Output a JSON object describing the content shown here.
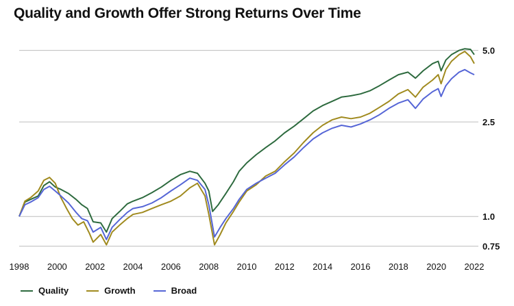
{
  "title": "Quality and Growth Offer Strong Returns Over Time",
  "chart_data": {
    "type": "line",
    "y_scale": "log",
    "ylim": [
      0.7,
      5.4
    ],
    "y_ticks": [
      {
        "value": 0.75,
        "label": "0.75"
      },
      {
        "value": 1.0,
        "label": "1.0"
      },
      {
        "value": 2.5,
        "label": "2.5"
      },
      {
        "value": 5.0,
        "label": "5.0"
      }
    ],
    "xlim": [
      1998,
      2022
    ],
    "x_ticks": [
      1998,
      2000,
      2002,
      2004,
      2006,
      2008,
      2010,
      2012,
      2014,
      2016,
      2018,
      2020,
      2022
    ],
    "grid": true,
    "legend_position": "bottom-left",
    "series": [
      {
        "name": "Quality",
        "color": "#2d6a3e",
        "points": [
          [
            1998.0,
            1.0
          ],
          [
            1998.3,
            1.15
          ],
          [
            1998.6,
            1.18
          ],
          [
            1999.0,
            1.22
          ],
          [
            1999.3,
            1.35
          ],
          [
            1999.6,
            1.4
          ],
          [
            1999.9,
            1.33
          ],
          [
            2000.2,
            1.3
          ],
          [
            2000.6,
            1.25
          ],
          [
            2001.0,
            1.18
          ],
          [
            2001.3,
            1.12
          ],
          [
            2001.6,
            1.08
          ],
          [
            2001.9,
            0.95
          ],
          [
            2002.3,
            0.94
          ],
          [
            2002.6,
            0.86
          ],
          [
            2002.9,
            0.98
          ],
          [
            2003.3,
            1.05
          ],
          [
            2003.7,
            1.13
          ],
          [
            2004.0,
            1.16
          ],
          [
            2004.5,
            1.2
          ],
          [
            2005.0,
            1.26
          ],
          [
            2005.5,
            1.33
          ],
          [
            2006.0,
            1.42
          ],
          [
            2006.5,
            1.5
          ],
          [
            2007.0,
            1.55
          ],
          [
            2007.4,
            1.52
          ],
          [
            2007.8,
            1.38
          ],
          [
            2008.0,
            1.28
          ],
          [
            2008.2,
            1.05
          ],
          [
            2008.5,
            1.12
          ],
          [
            2008.9,
            1.25
          ],
          [
            2009.3,
            1.4
          ],
          [
            2009.6,
            1.55
          ],
          [
            2010.0,
            1.68
          ],
          [
            2010.5,
            1.82
          ],
          [
            2011.0,
            1.95
          ],
          [
            2011.5,
            2.08
          ],
          [
            2012.0,
            2.25
          ],
          [
            2012.5,
            2.4
          ],
          [
            2013.0,
            2.58
          ],
          [
            2013.5,
            2.78
          ],
          [
            2014.0,
            2.93
          ],
          [
            2014.5,
            3.05
          ],
          [
            2015.0,
            3.18
          ],
          [
            2015.5,
            3.22
          ],
          [
            2016.0,
            3.28
          ],
          [
            2016.5,
            3.38
          ],
          [
            2017.0,
            3.55
          ],
          [
            2017.5,
            3.75
          ],
          [
            2018.0,
            3.95
          ],
          [
            2018.5,
            4.05
          ],
          [
            2018.9,
            3.82
          ],
          [
            2019.3,
            4.1
          ],
          [
            2019.8,
            4.4
          ],
          [
            2020.1,
            4.5
          ],
          [
            2020.25,
            4.1
          ],
          [
            2020.5,
            4.55
          ],
          [
            2020.8,
            4.8
          ],
          [
            2021.2,
            5.0
          ],
          [
            2021.5,
            5.08
          ],
          [
            2021.8,
            5.05
          ],
          [
            2022.0,
            4.8
          ]
        ]
      },
      {
        "name": "Growth",
        "color": "#a08a1e",
        "points": [
          [
            1998.0,
            1.0
          ],
          [
            1998.3,
            1.16
          ],
          [
            1998.6,
            1.2
          ],
          [
            1999.0,
            1.28
          ],
          [
            1999.3,
            1.42
          ],
          [
            1999.6,
            1.46
          ],
          [
            1999.9,
            1.38
          ],
          [
            2000.2,
            1.2
          ],
          [
            2000.5,
            1.08
          ],
          [
            2000.8,
            0.98
          ],
          [
            2001.1,
            0.92
          ],
          [
            2001.4,
            0.95
          ],
          [
            2001.7,
            0.85
          ],
          [
            2001.9,
            0.78
          ],
          [
            2002.3,
            0.84
          ],
          [
            2002.6,
            0.76
          ],
          [
            2002.9,
            0.86
          ],
          [
            2003.3,
            0.92
          ],
          [
            2003.7,
            0.98
          ],
          [
            2004.0,
            1.02
          ],
          [
            2004.5,
            1.04
          ],
          [
            2005.0,
            1.08
          ],
          [
            2005.5,
            1.12
          ],
          [
            2006.0,
            1.16
          ],
          [
            2006.5,
            1.22
          ],
          [
            2007.0,
            1.32
          ],
          [
            2007.4,
            1.38
          ],
          [
            2007.8,
            1.22
          ],
          [
            2008.0,
            1.02
          ],
          [
            2008.3,
            0.76
          ],
          [
            2008.6,
            0.84
          ],
          [
            2008.9,
            0.94
          ],
          [
            2009.3,
            1.05
          ],
          [
            2009.6,
            1.15
          ],
          [
            2010.0,
            1.28
          ],
          [
            2010.5,
            1.36
          ],
          [
            2011.0,
            1.48
          ],
          [
            2011.5,
            1.55
          ],
          [
            2012.0,
            1.7
          ],
          [
            2012.5,
            1.85
          ],
          [
            2013.0,
            2.05
          ],
          [
            2013.5,
            2.25
          ],
          [
            2014.0,
            2.42
          ],
          [
            2014.5,
            2.55
          ],
          [
            2015.0,
            2.62
          ],
          [
            2015.5,
            2.58
          ],
          [
            2016.0,
            2.62
          ],
          [
            2016.5,
            2.72
          ],
          [
            2017.0,
            2.88
          ],
          [
            2017.5,
            3.05
          ],
          [
            2018.0,
            3.28
          ],
          [
            2018.5,
            3.42
          ],
          [
            2018.9,
            3.18
          ],
          [
            2019.3,
            3.5
          ],
          [
            2019.8,
            3.75
          ],
          [
            2020.1,
            3.95
          ],
          [
            2020.25,
            3.62
          ],
          [
            2020.5,
            4.15
          ],
          [
            2020.8,
            4.5
          ],
          [
            2021.2,
            4.8
          ],
          [
            2021.5,
            4.95
          ],
          [
            2021.8,
            4.7
          ],
          [
            2022.0,
            4.4
          ]
        ]
      },
      {
        "name": "Broad",
        "color": "#5565d6",
        "points": [
          [
            1998.0,
            1.0
          ],
          [
            1998.3,
            1.12
          ],
          [
            1998.6,
            1.15
          ],
          [
            1999.0,
            1.2
          ],
          [
            1999.3,
            1.3
          ],
          [
            1999.6,
            1.34
          ],
          [
            1999.9,
            1.28
          ],
          [
            2000.2,
            1.22
          ],
          [
            2000.6,
            1.14
          ],
          [
            2001.0,
            1.04
          ],
          [
            2001.3,
            0.98
          ],
          [
            2001.6,
            0.96
          ],
          [
            2001.9,
            0.86
          ],
          [
            2002.3,
            0.9
          ],
          [
            2002.6,
            0.8
          ],
          [
            2002.9,
            0.9
          ],
          [
            2003.3,
            0.97
          ],
          [
            2003.7,
            1.04
          ],
          [
            2004.0,
            1.08
          ],
          [
            2004.5,
            1.1
          ],
          [
            2005.0,
            1.14
          ],
          [
            2005.5,
            1.2
          ],
          [
            2006.0,
            1.28
          ],
          [
            2006.5,
            1.36
          ],
          [
            2007.0,
            1.45
          ],
          [
            2007.4,
            1.42
          ],
          [
            2007.8,
            1.3
          ],
          [
            2008.0,
            1.12
          ],
          [
            2008.3,
            0.82
          ],
          [
            2008.6,
            0.9
          ],
          [
            2008.9,
            0.98
          ],
          [
            2009.3,
            1.08
          ],
          [
            2009.6,
            1.18
          ],
          [
            2010.0,
            1.3
          ],
          [
            2010.5,
            1.38
          ],
          [
            2011.0,
            1.45
          ],
          [
            2011.5,
            1.52
          ],
          [
            2012.0,
            1.65
          ],
          [
            2012.5,
            1.78
          ],
          [
            2013.0,
            1.95
          ],
          [
            2013.5,
            2.12
          ],
          [
            2014.0,
            2.25
          ],
          [
            2014.5,
            2.35
          ],
          [
            2015.0,
            2.42
          ],
          [
            2015.5,
            2.38
          ],
          [
            2016.0,
            2.45
          ],
          [
            2016.5,
            2.55
          ],
          [
            2017.0,
            2.68
          ],
          [
            2017.5,
            2.85
          ],
          [
            2018.0,
            3.0
          ],
          [
            2018.5,
            3.1
          ],
          [
            2018.9,
            2.85
          ],
          [
            2019.3,
            3.12
          ],
          [
            2019.8,
            3.35
          ],
          [
            2020.1,
            3.45
          ],
          [
            2020.25,
            3.2
          ],
          [
            2020.5,
            3.55
          ],
          [
            2020.8,
            3.8
          ],
          [
            2021.2,
            4.05
          ],
          [
            2021.5,
            4.15
          ],
          [
            2021.8,
            4.02
          ],
          [
            2022.0,
            3.95
          ]
        ]
      }
    ]
  }
}
